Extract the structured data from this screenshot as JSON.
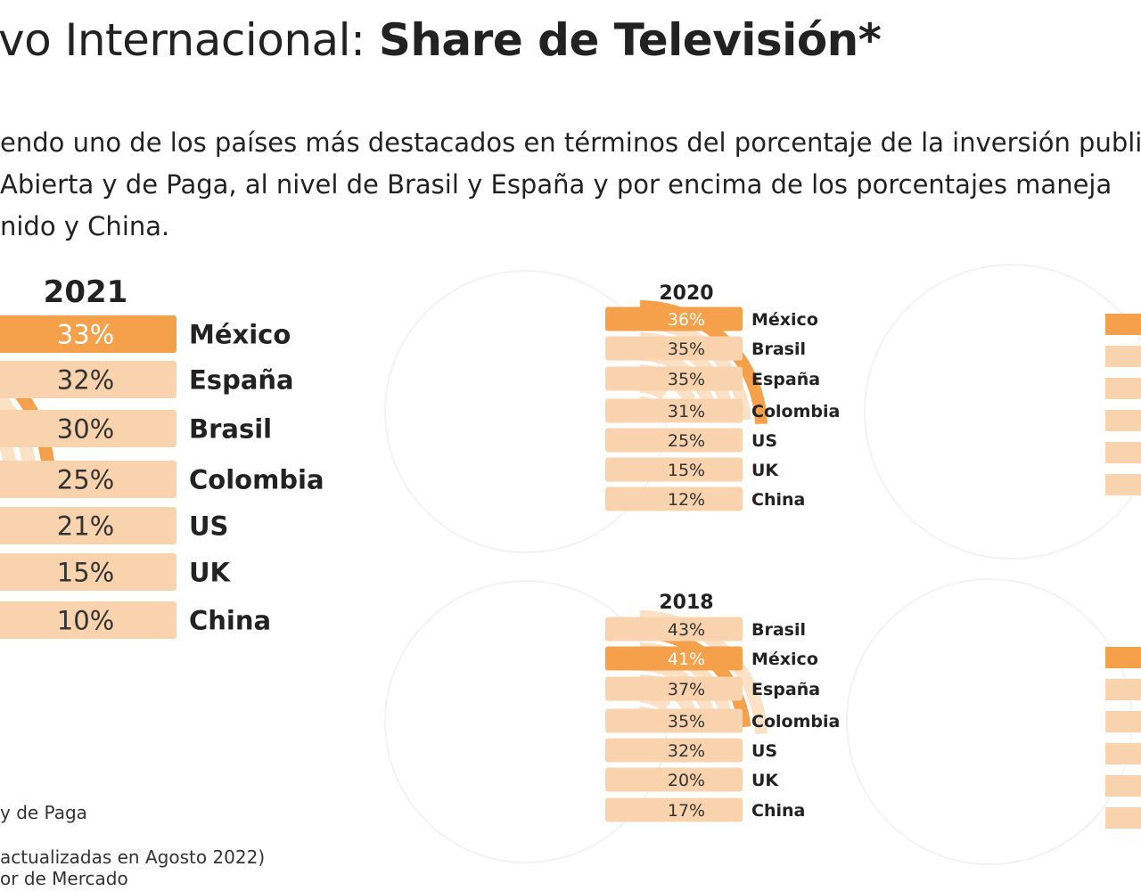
{
  "header": {
    "title_light": "vo Internacional: ",
    "title_bold": "Share de Televisión*"
  },
  "intro": {
    "line1": "endo uno de los países más destacados en términos del porcentaje de la inversión publi",
    "line2": "Abierta y de Paga, al nivel de Brasil y España y por encima de los porcentajes maneja",
    "line3": "nido y China."
  },
  "footnotes": {
    "note1": "y de Paga",
    "note2": " actualizadas en Agosto 2022)",
    "note3": "or de Mercado"
  },
  "colors": {
    "highlight": "#f5a04a",
    "bar": "#f9d3ae",
    "ring_light": "#fbe1c6",
    "halo": "#f3f3f3"
  },
  "chart_data": [
    {
      "type": "bar",
      "year": "2021",
      "categories": [
        "México",
        "España",
        "Brasil",
        "Colombia",
        "US",
        "UK",
        "China"
      ],
      "labels": [
        "33%",
        "32%",
        "30%",
        "25%",
        "21%",
        "15%",
        "10%"
      ],
      "values": [
        33,
        32,
        30,
        25,
        21,
        15,
        10
      ],
      "highlight": "México"
    },
    {
      "type": "bar",
      "year": "2020",
      "categories": [
        "México",
        "Brasil",
        "España",
        "Colombia",
        "US",
        "UK",
        "China"
      ],
      "labels": [
        "36%",
        "35%",
        "35%",
        "31%",
        "25%",
        "15%",
        "12%"
      ],
      "values": [
        36,
        35,
        35,
        31,
        25,
        15,
        12
      ],
      "highlight": "México"
    },
    {
      "type": "bar",
      "year": "2018",
      "categories": [
        "Brasil",
        "México",
        "España",
        "Colombia",
        "US",
        "UK",
        "China"
      ],
      "labels": [
        "43%",
        "41%",
        "37%",
        "35%",
        "32%",
        "20%",
        "17%"
      ],
      "values": [
        43,
        41,
        37,
        35,
        32,
        20,
        17
      ],
      "highlight": "México"
    }
  ]
}
